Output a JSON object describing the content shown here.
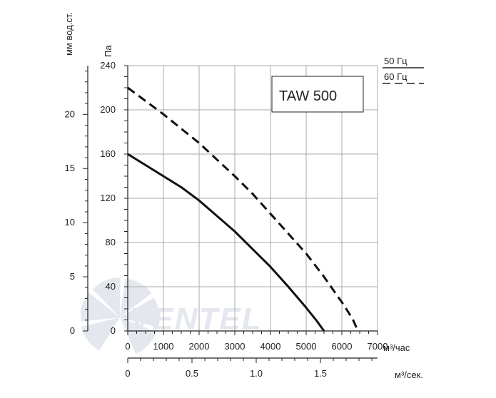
{
  "chart_data": {
    "type": "line",
    "model_label": "TAW 500",
    "x_unit_flow": "м³/час",
    "x_unit_flow_sec": "м³/сек.",
    "y_unit_pa": "Па",
    "y_unit_mm": "мм вод.ст.",
    "x_ticks": [
      "0",
      "1000",
      "2000",
      "3000",
      "4000",
      "5000",
      "6000",
      "7000"
    ],
    "x_ticks_sec": [
      "0",
      "0.5",
      "1.0",
      "1.5"
    ],
    "y_ticks_pa": [
      "0",
      "40",
      "80",
      "120",
      "160",
      "200",
      "240"
    ],
    "y_ticks_mm": [
      "0",
      "5",
      "10",
      "15",
      "20"
    ],
    "xlim": [
      0,
      7000
    ],
    "ylim": [
      0,
      240
    ],
    "xlim_sec": [
      0,
      1.9444
    ],
    "ylim_mm": [
      0,
      24.5
    ],
    "legend_labels": [
      "50 Гц",
      "60 Гц"
    ],
    "series": [
      {
        "name": "50 Гц",
        "line_style": "solid",
        "x": [
          0,
          500,
          1000,
          1500,
          2000,
          2500,
          3000,
          3500,
          4000,
          4500,
          5000,
          5300,
          5500
        ],
        "values": [
          160,
          150,
          140,
          130,
          118,
          104,
          90,
          74,
          58,
          40,
          21,
          9,
          0
        ]
      },
      {
        "name": "60 Гц",
        "line_style": "dashed",
        "x": [
          0,
          500,
          1000,
          1500,
          2000,
          2500,
          3000,
          3500,
          4000,
          4500,
          5000,
          5500,
          6000,
          6300,
          6450
        ],
        "values": [
          220,
          208,
          196,
          183,
          170,
          155,
          140,
          124,
          106,
          88,
          70,
          49,
          26,
          11,
          0
        ]
      }
    ]
  },
  "watermark": {
    "text": "VENTEL",
    "color": "#e4e8ee"
  },
  "colors": {
    "line": "#111111",
    "grid": "#aaaaaa",
    "axis": "#222222"
  }
}
